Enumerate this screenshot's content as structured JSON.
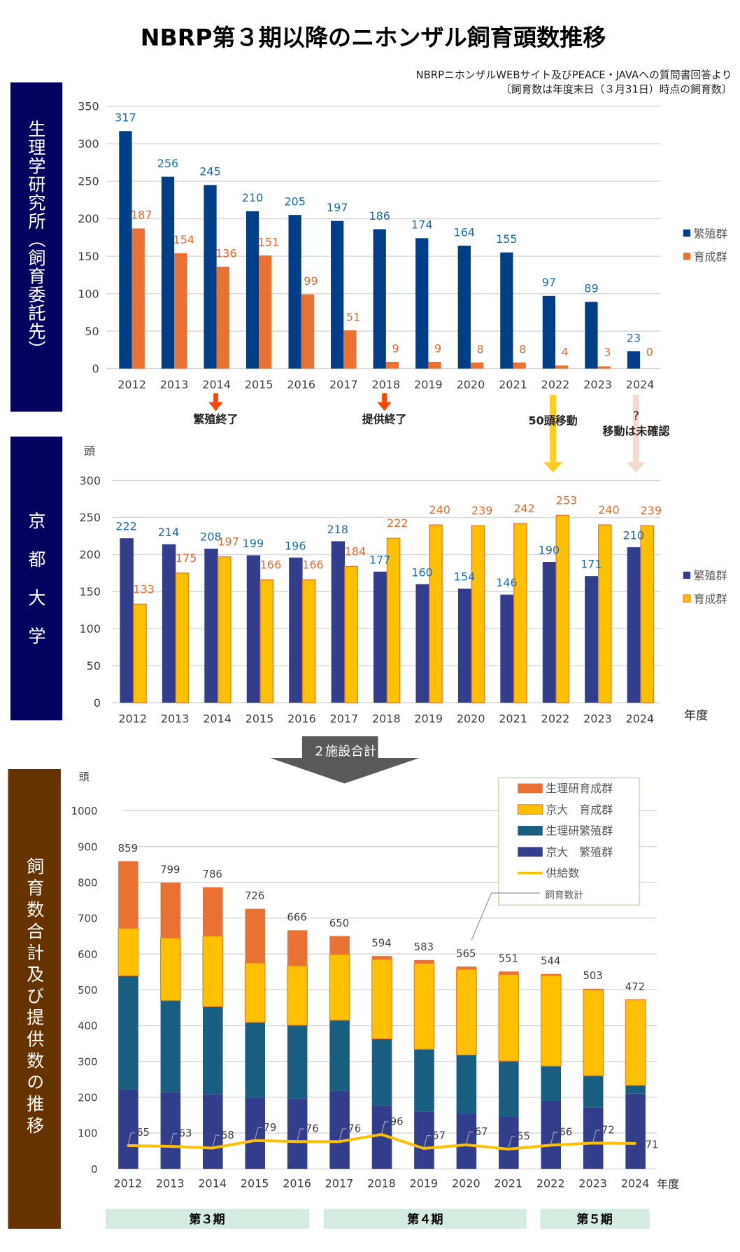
{
  "title": "NBRP第３期以降のニホンザル飼育頭数推移",
  "source_line1": "NBRPニホンザルWEBサイト及びPEACE・JAVAへの質問書回答より",
  "source_line2": "〔飼育数は年度末日（３月31日）時点の飼育数〕",
  "colors": {
    "nips_breeding": "#003f87",
    "nips_rearing": "#e97132",
    "kyoto_breeding": "#323e8c",
    "kyoto_rearing": "#ffc000",
    "total_nips_breeding": "#175e80",
    "supply_line": "#ffc000",
    "label_blue": "#1a6fa8",
    "label_orange": "#e8692c"
  },
  "annotations": {
    "breeding_end": "繁殖終了",
    "supply_end": "提供終了",
    "moved_50": "50頭移動",
    "question": "?",
    "move_unconfirmed": "移動は未確認",
    "arrow_label": "２施設合計"
  },
  "periods": [
    "第３期",
    "第４期",
    "第５期"
  ],
  "chart_data": [
    {
      "type": "bar",
      "banner": "生理学研究所（飼育委託先）",
      "categories": [
        "2012",
        "2013",
        "2014",
        "2015",
        "2016",
        "2017",
        "2018",
        "2019",
        "2020",
        "2021",
        "2022",
        "2023",
        "2024"
      ],
      "series": [
        {
          "name": "繁殖群",
          "values": [
            317,
            256,
            245,
            210,
            205,
            197,
            186,
            174,
            164,
            155,
            97,
            89,
            23
          ]
        },
        {
          "name": "育成群",
          "values": [
            187,
            154,
            136,
            151,
            99,
            51,
            9,
            9,
            8,
            8,
            4,
            3,
            0
          ]
        }
      ],
      "ylim": [
        0,
        350
      ],
      "yticks": [
        "0",
        "50",
        "100",
        "150",
        "200",
        "250",
        "300",
        "350"
      ],
      "grid": true,
      "legend": "right"
    },
    {
      "type": "bar",
      "banner": "京都大学",
      "ylabel": "頭",
      "xlabel": "年度",
      "categories": [
        "2012",
        "2013",
        "2014",
        "2015",
        "2016",
        "2017",
        "2018",
        "2019",
        "2020",
        "2021",
        "2022",
        "2023",
        "2024"
      ],
      "series": [
        {
          "name": "繁殖群",
          "values": [
            222,
            214,
            208,
            199,
            196,
            218,
            177,
            160,
            154,
            146,
            190,
            171,
            210
          ]
        },
        {
          "name": "育成群",
          "values": [
            133,
            175,
            197,
            166,
            166,
            184,
            222,
            240,
            239,
            242,
            253,
            240,
            239
          ]
        }
      ],
      "ylim": [
        0,
        300
      ],
      "yticks": [
        "0",
        "50",
        "100",
        "150",
        "200",
        "250",
        "300"
      ],
      "grid": true,
      "legend": "right"
    },
    {
      "type": "stacked-bar+line",
      "banner": "飼育数合計及び提供数の推移",
      "ylabel": "頭",
      "xlabel": "年度",
      "categories": [
        "2012",
        "2013",
        "2014",
        "2015",
        "2016",
        "2017",
        "2018",
        "2019",
        "2020",
        "2021",
        "2022",
        "2023",
        "2024"
      ],
      "series": [
        {
          "name": "京大　繁殖群",
          "values": [
            222,
            214,
            208,
            199,
            196,
            218,
            177,
            160,
            154,
            146,
            190,
            171,
            210
          ]
        },
        {
          "name": "生理研繁殖群",
          "values": [
            317,
            256,
            245,
            210,
            205,
            197,
            186,
            174,
            164,
            155,
            97,
            89,
            23
          ]
        },
        {
          "name": "京大　育成群",
          "values": [
            133,
            175,
            197,
            166,
            166,
            184,
            222,
            240,
            239,
            242,
            253,
            240,
            239
          ]
        },
        {
          "name": "生理研育成群",
          "values": [
            187,
            154,
            136,
            151,
            99,
            51,
            9,
            9,
            8,
            8,
            4,
            3,
            0
          ]
        }
      ],
      "totals_name": "飼育数計",
      "totals": [
        859,
        799,
        786,
        726,
        666,
        650,
        594,
        583,
        565,
        551,
        544,
        503,
        472
      ],
      "line": {
        "name": "供給数",
        "values": [
          65,
          63,
          58,
          79,
          76,
          76,
          96,
          57,
          67,
          55,
          66,
          72,
          71
        ]
      },
      "legend_order": [
        "生理研育成群",
        "京大　育成群",
        "生理研繁殖群",
        "京大　繁殖群",
        "供給数",
        "飼育数計"
      ],
      "ylim": [
        0,
        1000
      ],
      "yticks": [
        "0",
        "100",
        "200",
        "300",
        "400",
        "500",
        "600",
        "700",
        "800",
        "900",
        "1000"
      ],
      "grid": true,
      "legend": "top-right"
    }
  ]
}
